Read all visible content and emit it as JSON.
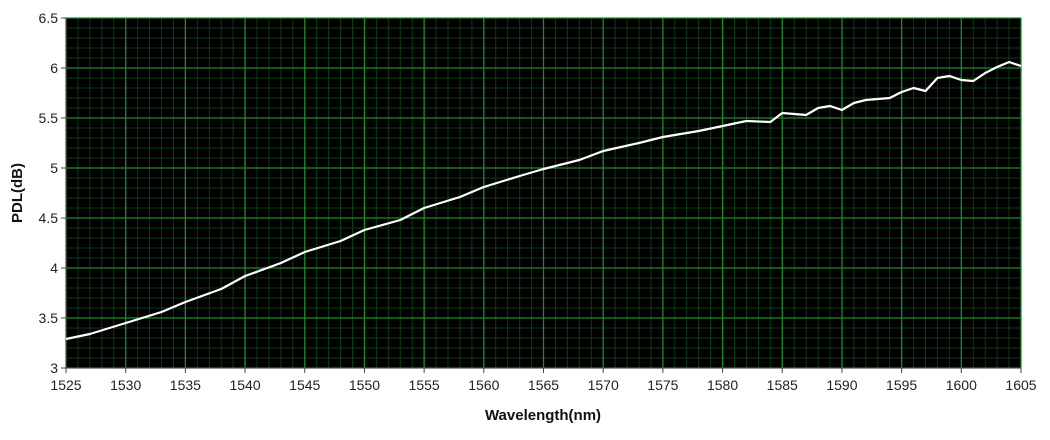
{
  "chart_data": {
    "type": "line",
    "title": "",
    "xlabel": "Wavelength(nm)",
    "ylabel": "PDL(dB)",
    "xlim": [
      1525,
      1605
    ],
    "ylim": [
      3,
      6.5
    ],
    "x_ticks": [
      "1525",
      "1530",
      "1535",
      "1540",
      "1545",
      "1550",
      "1555",
      "1560",
      "1565",
      "1570",
      "1575",
      "1580",
      "1585",
      "1590",
      "1595",
      "1600",
      "1605"
    ],
    "y_ticks": [
      "3",
      "3.5",
      "4",
      "4.5",
      "5",
      "5.5",
      "6",
      "6.5"
    ],
    "grid": true,
    "legend": "none",
    "colors": {
      "plot_background": "#000000",
      "major_grid": "#1f8a2a",
      "minor_grid": "#0d3d12",
      "line": "#ffffff"
    },
    "series": [
      {
        "x": [
          1525,
          1527,
          1530,
          1533,
          1535,
          1538,
          1540,
          1543,
          1545,
          1548,
          1550,
          1553,
          1555,
          1558,
          1560,
          1563,
          1565,
          1568,
          1570,
          1573,
          1575,
          1578,
          1580,
          1582,
          1584,
          1585,
          1587,
          1588,
          1589,
          1590,
          1591,
          1592,
          1594,
          1595,
          1596,
          1597,
          1598,
          1599,
          1600,
          1601,
          1602,
          1603,
          1604,
          1605
        ],
        "y": [
          3.29,
          3.34,
          3.45,
          3.56,
          3.66,
          3.79,
          3.92,
          4.05,
          4.16,
          4.27,
          4.38,
          4.48,
          4.6,
          4.71,
          4.81,
          4.92,
          4.99,
          5.08,
          5.17,
          5.25,
          5.31,
          5.37,
          5.42,
          5.47,
          5.46,
          5.55,
          5.53,
          5.6,
          5.62,
          5.58,
          5.65,
          5.68,
          5.7,
          5.76,
          5.8,
          5.77,
          5.9,
          5.92,
          5.88,
          5.87,
          5.95,
          6.01,
          6.06,
          6.02
        ]
      }
    ]
  }
}
